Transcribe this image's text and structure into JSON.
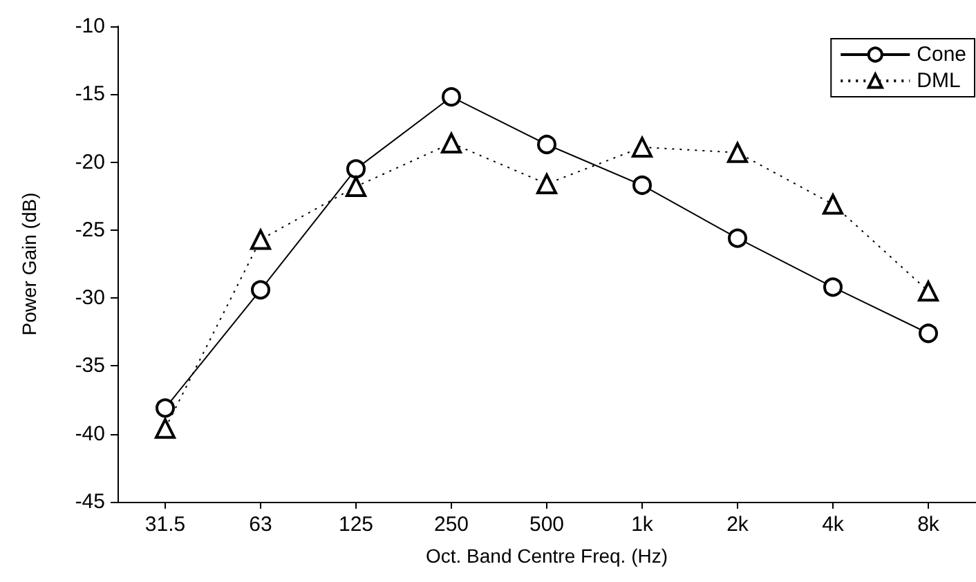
{
  "chart_data": {
    "type": "line",
    "xlabel": "Oct. Band Centre Freq. (Hz)",
    "ylabel": "Power Gain (dB)",
    "categories": [
      "31.5",
      "63",
      "125",
      "250",
      "500",
      "1k",
      "2k",
      "4k",
      "8k"
    ],
    "series": [
      {
        "name": "Cone",
        "color": "#000000",
        "marker": "circle",
        "line_style": "solid",
        "values": [
          -38.1,
          -29.4,
          -20.5,
          -15.2,
          -18.7,
          -21.7,
          -25.6,
          -29.2,
          -32.6
        ]
      },
      {
        "name": "DML",
        "color": "#000000",
        "marker": "triangle",
        "line_style": "dotted",
        "values": [
          -39.6,
          -25.7,
          -21.8,
          -18.6,
          -21.6,
          -18.9,
          -19.3,
          -23.1,
          -29.5
        ]
      }
    ],
    "ylim": [
      -45,
      -10
    ],
    "yticks": [
      -45,
      -40,
      -35,
      -30,
      -25,
      -20,
      -15,
      -10
    ],
    "grid": false,
    "legend": "top right"
  }
}
